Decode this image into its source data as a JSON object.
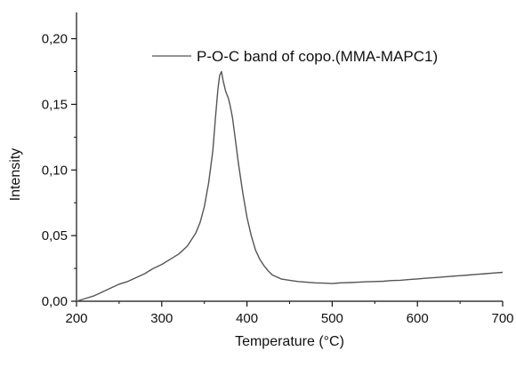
{
  "chart_data": {
    "type": "line",
    "title": "",
    "xlabel": "Temperature (°C)",
    "ylabel": "Intensity",
    "xlim": [
      200,
      700
    ],
    "ylim": [
      0,
      0.22
    ],
    "x_ticks": [
      200,
      300,
      400,
      500,
      600,
      700
    ],
    "x_tick_labels": [
      "200",
      "300",
      "400",
      "500",
      "600",
      "700"
    ],
    "y_ticks": [
      0,
      0.05,
      0.1,
      0.15,
      0.2
    ],
    "y_tick_labels": [
      "0,00",
      "0,05",
      "0,10",
      "0,15",
      "0,20"
    ],
    "grid": false,
    "legend_position": "top-right",
    "series": [
      {
        "name": "P-O-C band of copo.(MMA-MAPC1)",
        "color": "#555555",
        "x": [
          200,
          210,
          220,
          230,
          240,
          250,
          260,
          270,
          280,
          290,
          300,
          310,
          320,
          330,
          340,
          345,
          350,
          355,
          360,
          363,
          366,
          368,
          370,
          372,
          375,
          378,
          380,
          383,
          386,
          390,
          395,
          400,
          405,
          410,
          415,
          420,
          425,
          430,
          440,
          450,
          460,
          470,
          480,
          490,
          500,
          510,
          520,
          530,
          540,
          550,
          560,
          570,
          580,
          590,
          600,
          610,
          620,
          630,
          640,
          650,
          660,
          670,
          680,
          690,
          700
        ],
        "y": [
          0.0,
          0.002,
          0.004,
          0.007,
          0.01,
          0.013,
          0.015,
          0.018,
          0.021,
          0.025,
          0.028,
          0.032,
          0.036,
          0.042,
          0.052,
          0.06,
          0.072,
          0.09,
          0.115,
          0.14,
          0.162,
          0.172,
          0.175,
          0.168,
          0.16,
          0.155,
          0.15,
          0.14,
          0.125,
          0.105,
          0.083,
          0.064,
          0.05,
          0.039,
          0.032,
          0.027,
          0.023,
          0.02,
          0.017,
          0.016,
          0.015,
          0.0145,
          0.014,
          0.0138,
          0.0135,
          0.014,
          0.0142,
          0.0145,
          0.0148,
          0.015,
          0.0152,
          0.0158,
          0.016,
          0.0165,
          0.017,
          0.0175,
          0.018,
          0.0185,
          0.019,
          0.0195,
          0.02,
          0.0205,
          0.021,
          0.0215,
          0.022
        ]
      }
    ]
  }
}
